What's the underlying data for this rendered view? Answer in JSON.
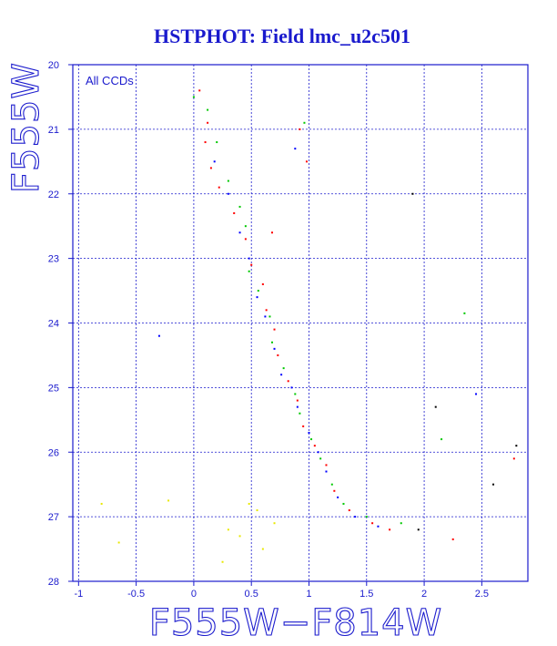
{
  "chart_data": {
    "type": "scatter",
    "title": "HSTPHOT: Field lmc_u2c501",
    "xlabel": "F555W−F814W",
    "ylabel": "F555W",
    "xlim": [
      -1.05,
      2.9
    ],
    "ylim": [
      20,
      28
    ],
    "y_inverted": true,
    "x_ticks": [
      -1,
      -0.5,
      0,
      0.5,
      1,
      1.5,
      2,
      2.5
    ],
    "x_tick_labels": [
      "-1",
      "-0.5",
      "0",
      "0.5",
      "1",
      "1.5",
      "2",
      "2.5"
    ],
    "y_ticks": [
      20,
      21,
      22,
      23,
      24,
      25,
      26,
      27,
      28
    ],
    "y_tick_labels": [
      "20",
      "21",
      "22",
      "23",
      "24",
      "25",
      "26",
      "27",
      "28"
    ],
    "grid": true,
    "annotation": "All CCDs",
    "series_colors": [
      "#ff0000",
      "#00c800",
      "#0000ff",
      "#e8e800",
      "#000000"
    ],
    "series": [
      {
        "points": [
          [
            0.05,
            20.4
          ],
          [
            0.12,
            20.9
          ],
          [
            0.1,
            21.2
          ],
          [
            0.15,
            21.6
          ],
          [
            0.22,
            21.9
          ],
          [
            0.35,
            22.3
          ],
          [
            0.45,
            22.7
          ],
          [
            0.5,
            23.1
          ],
          [
            0.6,
            23.4
          ],
          [
            0.63,
            23.8
          ],
          [
            0.7,
            24.1
          ],
          [
            0.73,
            24.5
          ],
          [
            0.82,
            24.9
          ],
          [
            0.9,
            25.2
          ],
          [
            0.95,
            25.6
          ],
          [
            1.05,
            25.9
          ],
          [
            1.15,
            26.2
          ],
          [
            1.22,
            26.6
          ],
          [
            1.35,
            26.9
          ],
          [
            1.55,
            27.1
          ],
          [
            1.7,
            27.2
          ],
          [
            0.92,
            21.0
          ],
          [
            0.98,
            21.5
          ],
          [
            0.68,
            22.6
          ],
          [
            2.25,
            27.35
          ],
          [
            2.78,
            26.1
          ]
        ]
      },
      {
        "points": [
          [
            0.0,
            20.5
          ],
          [
            0.12,
            20.7
          ],
          [
            0.2,
            21.2
          ],
          [
            0.3,
            21.8
          ],
          [
            0.4,
            22.2
          ],
          [
            0.45,
            22.5
          ],
          [
            0.48,
            23.2
          ],
          [
            0.56,
            23.5
          ],
          [
            0.66,
            23.9
          ],
          [
            0.68,
            24.3
          ],
          [
            0.78,
            24.7
          ],
          [
            0.88,
            25.1
          ],
          [
            0.92,
            25.4
          ],
          [
            1.02,
            25.8
          ],
          [
            1.1,
            26.1
          ],
          [
            1.2,
            26.5
          ],
          [
            1.3,
            26.8
          ],
          [
            1.5,
            27.0
          ],
          [
            1.8,
            27.1
          ],
          [
            0.96,
            20.9
          ],
          [
            2.35,
            23.85
          ],
          [
            2.15,
            25.8
          ]
        ]
      },
      {
        "points": [
          [
            0.18,
            21.5
          ],
          [
            0.3,
            22.0
          ],
          [
            0.4,
            22.6
          ],
          [
            0.48,
            23.0
          ],
          [
            0.55,
            23.6
          ],
          [
            0.62,
            23.9
          ],
          [
            0.7,
            24.4
          ],
          [
            0.76,
            24.8
          ],
          [
            0.85,
            25.0
          ],
          [
            0.9,
            25.3
          ],
          [
            1.0,
            25.7
          ],
          [
            1.08,
            26.0
          ],
          [
            1.15,
            26.3
          ],
          [
            1.25,
            26.7
          ],
          [
            1.4,
            27.0
          ],
          [
            1.6,
            27.15
          ],
          [
            0.88,
            21.3
          ],
          [
            2.45,
            25.1
          ],
          [
            -0.3,
            24.2
          ]
        ]
      },
      {
        "points": [
          [
            -0.8,
            26.8
          ],
          [
            -0.22,
            26.75
          ],
          [
            0.48,
            26.8
          ],
          [
            0.3,
            27.2
          ],
          [
            0.25,
            27.7
          ],
          [
            0.4,
            27.3
          ],
          [
            0.55,
            26.9
          ],
          [
            -0.65,
            27.4
          ],
          [
            0.6,
            27.5
          ],
          [
            0.7,
            27.1
          ]
        ]
      },
      {
        "points": [
          [
            2.6,
            26.5
          ],
          [
            2.8,
            25.9
          ],
          [
            1.9,
            22.0
          ],
          [
            1.95,
            27.2
          ],
          [
            2.1,
            25.3
          ]
        ]
      }
    ]
  }
}
